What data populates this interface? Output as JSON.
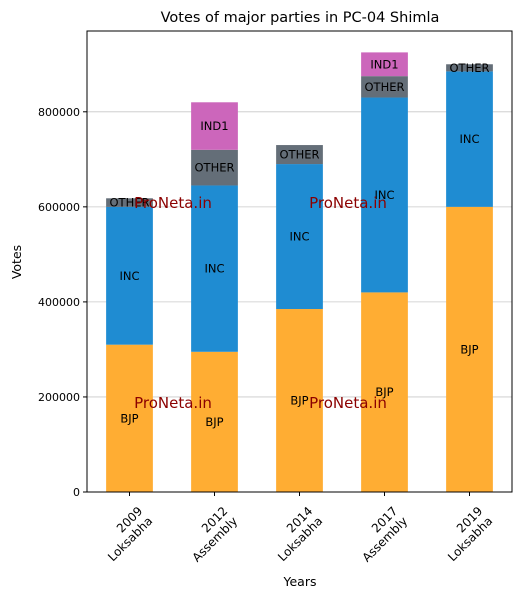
{
  "chart_data": {
    "type": "bar",
    "stacked": true,
    "title": "Votes of major parties in PC-04 Shimla",
    "xlabel": "Years",
    "ylabel": "Votes",
    "ylim": [
      0,
      970000
    ],
    "grid": "horizontal",
    "categories": [
      "2009\nLoksabha",
      "2012\nAssembly",
      "2014\nLoksabha",
      "2017\nAssembly",
      "2019\nLoksabha"
    ],
    "yticks": [
      0,
      200000,
      400000,
      600000,
      800000
    ],
    "series": [
      {
        "name": "BJP",
        "color": "#FFAD33",
        "values": [
          310000,
          295000,
          385000,
          420000,
          600000
        ]
      },
      {
        "name": "INC",
        "color": "#1F8CD2",
        "values": [
          290000,
          350000,
          305000,
          410000,
          285000
        ]
      },
      {
        "name": "OTHER",
        "color": "#646E78",
        "values": [
          18000,
          75000,
          40000,
          45000,
          15000
        ]
      },
      {
        "name": "IND1",
        "color": "#CC66BB",
        "values": [
          0,
          100000,
          0,
          50000,
          0
        ]
      }
    ],
    "watermark": "ProNeta.in"
  }
}
